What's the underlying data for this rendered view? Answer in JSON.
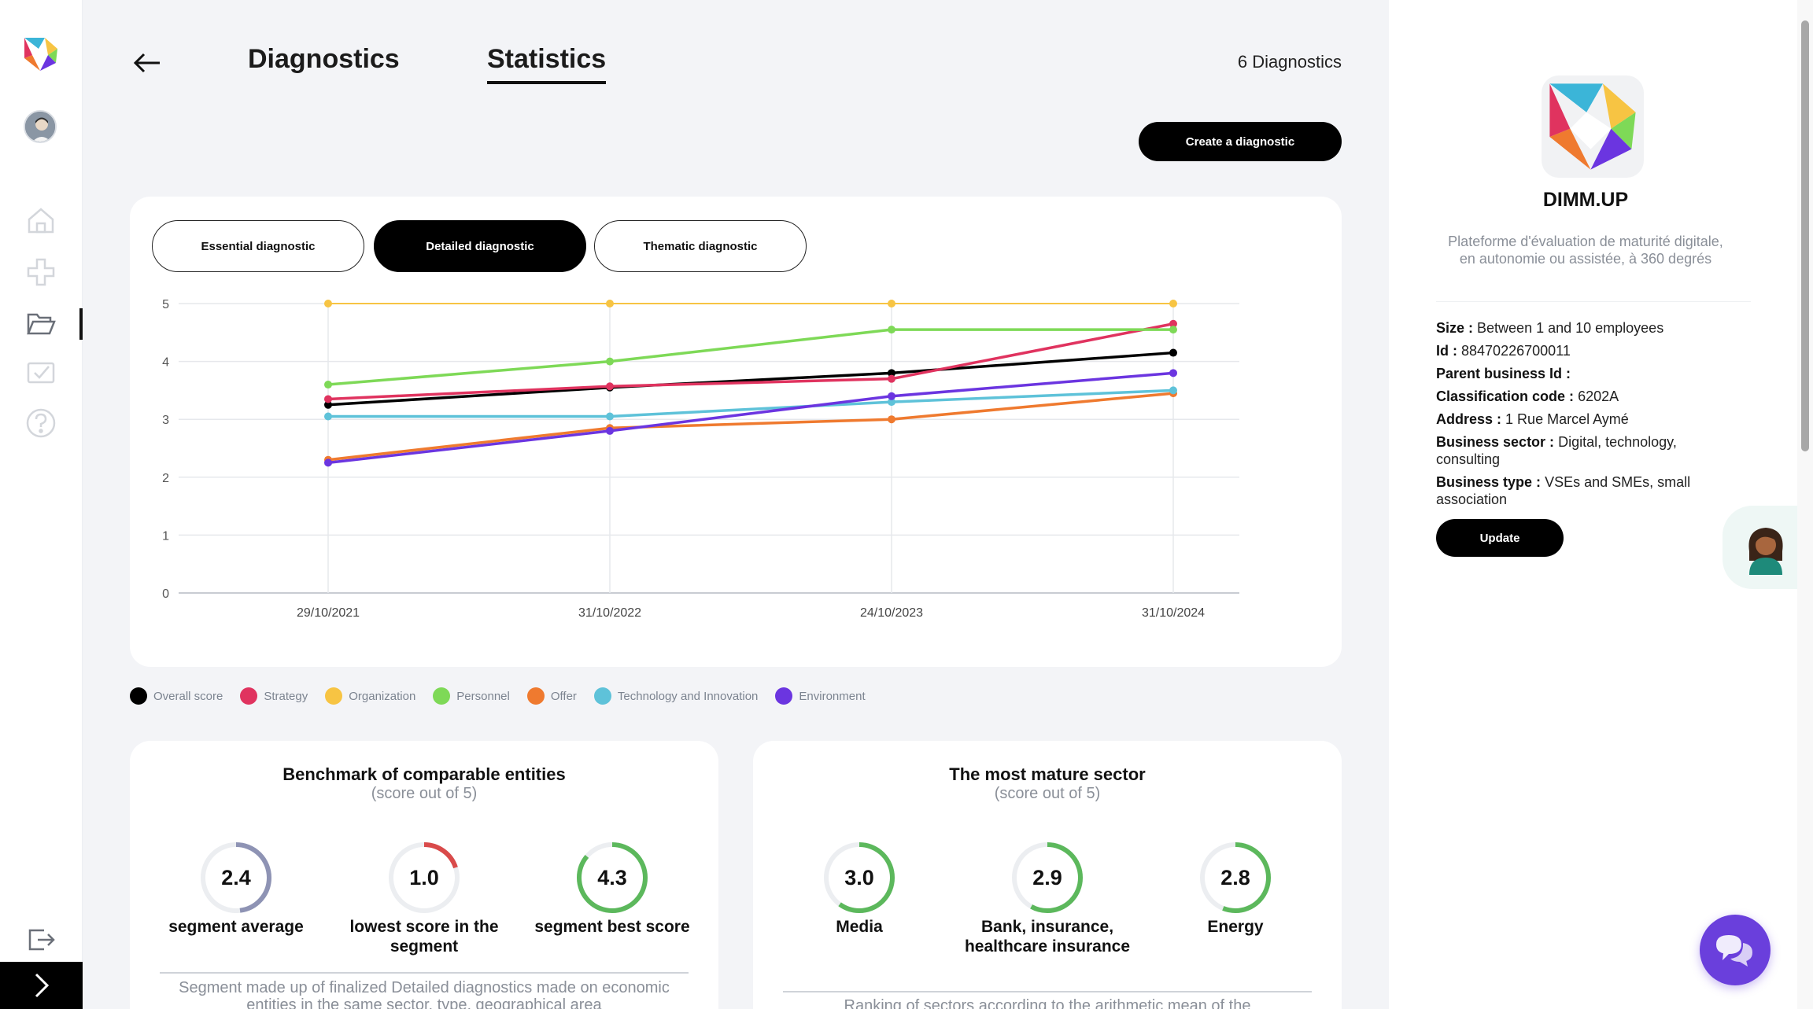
{
  "header": {
    "tabs": [
      {
        "label": "Diagnostics",
        "active": false
      },
      {
        "label": "Statistics",
        "active": true
      }
    ],
    "count": "6 Diagnostics",
    "create_button": "Create a diagnostic"
  },
  "sidebar": {
    "items": [
      {
        "icon": "home-icon"
      },
      {
        "icon": "medical-cross-icon"
      },
      {
        "icon": "folder-open-icon",
        "active": true
      },
      {
        "icon": "checklist-icon"
      },
      {
        "icon": "help-icon"
      }
    ],
    "logout_icon": "logout-icon",
    "expand_icon": "chevron-right-icon"
  },
  "filters": [
    {
      "label": "Essential diagnostic",
      "active": false
    },
    {
      "label": "Detailed diagnostic",
      "active": true
    },
    {
      "label": "Thematic diagnostic",
      "active": false
    }
  ],
  "chart_data": {
    "type": "line",
    "x": [
      "29/10/2021",
      "31/10/2022",
      "24/10/2023",
      "31/10/2024"
    ],
    "ylim": [
      0,
      5
    ],
    "yticks": [
      0,
      1,
      2,
      3,
      4,
      5
    ],
    "grid": true,
    "legend_placement": "bottom",
    "series": [
      {
        "name": "Overall score",
        "color": "#000000",
        "values": [
          3.25,
          3.55,
          3.8,
          4.15
        ]
      },
      {
        "name": "Strategy",
        "color": "#e0335f",
        "values": [
          3.35,
          3.57,
          3.7,
          4.65
        ]
      },
      {
        "name": "Organization",
        "color": "#f7c443",
        "values": [
          5.0,
          5.0,
          5.0,
          5.0
        ]
      },
      {
        "name": "Personnel",
        "color": "#7ed957",
        "values": [
          3.6,
          4.0,
          4.55,
          4.55
        ]
      },
      {
        "name": "Offer",
        "color": "#ef7a2f",
        "values": [
          2.3,
          2.85,
          3.0,
          3.45
        ]
      },
      {
        "name": "Technology and Innovation",
        "color": "#5ec2d9",
        "values": [
          3.05,
          3.05,
          3.3,
          3.5
        ]
      },
      {
        "name": "Environment",
        "color": "#6b35e0",
        "values": [
          2.25,
          2.8,
          3.4,
          3.8
        ]
      }
    ]
  },
  "benchmark": {
    "title": "Benchmark of comparable entities",
    "subtitle": "(score out of 5)",
    "gauges": [
      {
        "value": "2.4",
        "fraction": 0.48,
        "label": "segment average",
        "color": "#8e93b4"
      },
      {
        "value": "1.0",
        "fraction": 0.2,
        "label": "lowest score in the segment",
        "color": "#d94a4a"
      },
      {
        "value": "4.3",
        "fraction": 0.86,
        "label": "segment best score",
        "color": "#5cb85c"
      }
    ],
    "note": "Segment made up of finalized Detailed diagnostics made on economic entities in the same sector, type, geographical area"
  },
  "mature_sector": {
    "title": "The most mature sector",
    "subtitle": "(score out of 5)",
    "gauges": [
      {
        "value": "3.0",
        "fraction": 0.6,
        "label": "Media",
        "color": "#5cb85c"
      },
      {
        "value": "2.9",
        "fraction": 0.58,
        "label": "Bank, insurance, healthcare insurance",
        "color": "#5cb85c"
      },
      {
        "value": "2.8",
        "fraction": 0.56,
        "label": "Energy",
        "color": "#5cb85c"
      }
    ],
    "note": "Ranking of sectors according to the arithmetic mean of the"
  },
  "company": {
    "name": "DIMM.UP",
    "description": "Plateforme d'évaluation de maturité digitale, en autonomie ou assistée, à 360 degrés",
    "fields": [
      {
        "label": "Size :",
        "value": "Between 1 and 10 employees"
      },
      {
        "label": "Id :",
        "value": "88470226700011"
      },
      {
        "label": "Parent business Id :",
        "value": ""
      },
      {
        "label": "Classification code :",
        "value": "6202A"
      },
      {
        "label": "Address :",
        "value": "1 Rue Marcel Aymé"
      },
      {
        "label": "Business sector :",
        "value": "Digital, technology, consulting"
      },
      {
        "label": "Business type :",
        "value": "VSEs and SMEs, small association"
      }
    ],
    "update_button": "Update"
  }
}
